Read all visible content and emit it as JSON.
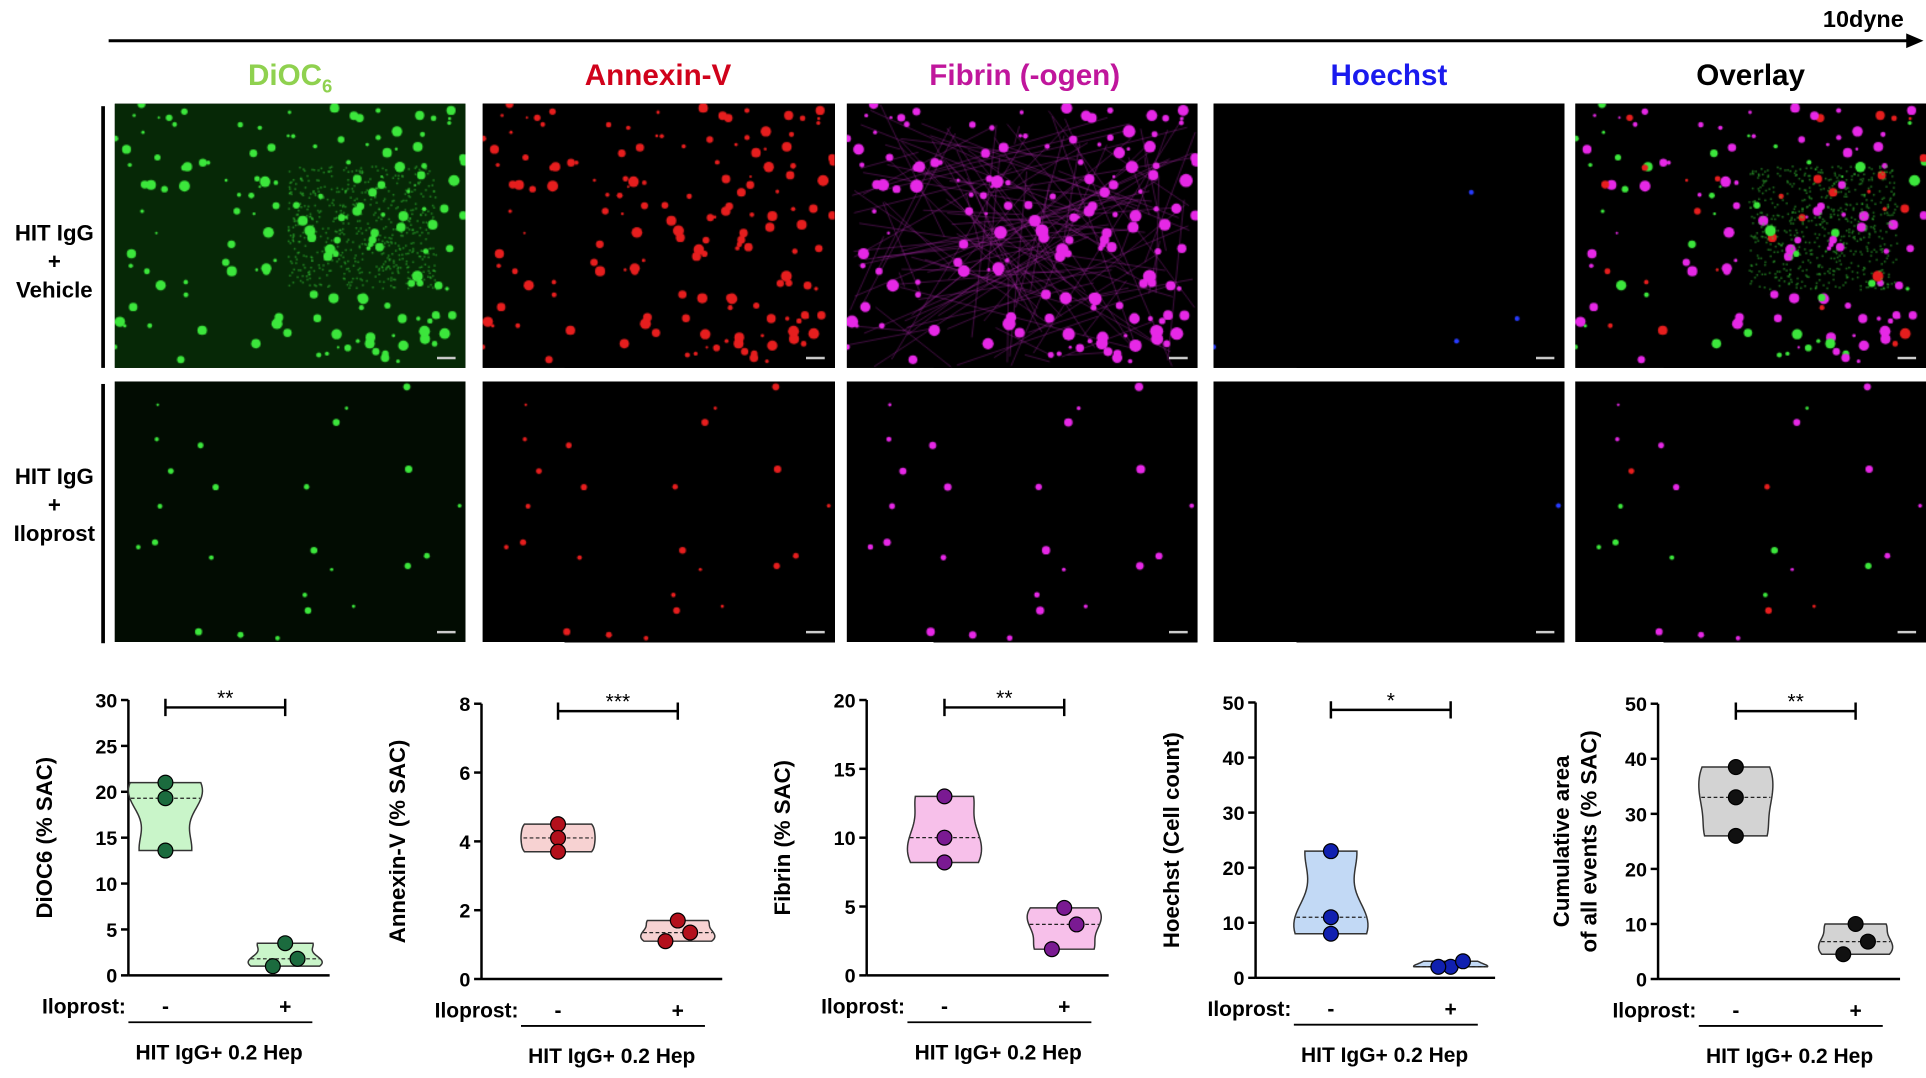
{
  "flow": {
    "label": "10dyne"
  },
  "columns": [
    {
      "label": "DiOC",
      "sub": "6",
      "color": "#8fd14f"
    },
    {
      "label": "Annexin-V",
      "sub": "",
      "color": "#d0021b"
    },
    {
      "label": "Fibrin (-ogen)",
      "sub": "",
      "color": "#c0169c"
    },
    {
      "label": "Hoechst",
      "sub": "",
      "color": "#1a1aee"
    },
    {
      "label": "Overlay",
      "sub": "",
      "color": "#000000"
    }
  ],
  "rows": [
    {
      "line1": "HIT IgG",
      "line2": "+",
      "line3": "Vehicle"
    },
    {
      "line1": "HIT IgG",
      "line2": "+",
      "line3": "Iloprost"
    }
  ],
  "chart_data": [
    {
      "type": "violin",
      "ylabel": "DiOC6 (% SAC)",
      "ylim": [
        0,
        30
      ],
      "yticks": [
        0,
        5,
        10,
        15,
        20,
        25,
        30
      ],
      "categories": [
        "-",
        "+"
      ],
      "group_label": "Iloprost:",
      "xlabel": "HIT IgG+ 0.2 Hep",
      "values": [
        [
          21.0,
          19.3,
          13.6
        ],
        [
          3.5,
          1.8,
          1.0
        ]
      ],
      "significance": "**",
      "fill": "#c9f5c9",
      "point": "#1b6b3e"
    },
    {
      "type": "violin",
      "ylabel": "Annexin-V (% SAC)",
      "ylim": [
        0,
        8
      ],
      "yticks": [
        0,
        2,
        4,
        6,
        8
      ],
      "categories": [
        "-",
        "+"
      ],
      "group_label": "Iloprost:",
      "xlabel": "HIT IgG+ 0.2 Hep",
      "values": [
        [
          4.5,
          4.1,
          3.7
        ],
        [
          1.7,
          1.35,
          1.1
        ]
      ],
      "significance": "***",
      "fill": "#f7d2d2",
      "point": "#b3101c"
    },
    {
      "type": "violin",
      "ylabel": "Fibrin (% SAC)",
      "ylim": [
        0,
        20
      ],
      "yticks": [
        0,
        5,
        10,
        15,
        20
      ],
      "categories": [
        "-",
        "+"
      ],
      "group_label": "Iloprost:",
      "xlabel": "HIT IgG+ 0.2 Hep",
      "values": [
        [
          13.0,
          10.0,
          8.2
        ],
        [
          4.9,
          3.7,
          1.9
        ]
      ],
      "significance": "**",
      "fill": "#f7c0ea",
      "point": "#7a1a92"
    },
    {
      "type": "violin",
      "ylabel": "Hoechst (Cell count)",
      "ylim": [
        0,
        50
      ],
      "yticks": [
        0,
        10,
        20,
        30,
        40,
        50
      ],
      "categories": [
        "-",
        "+"
      ],
      "group_label": "Iloprost:",
      "xlabel": "HIT IgG+ 0.2 Hep",
      "values": [
        [
          23.0,
          11.0,
          8.0
        ],
        [
          2.0,
          3.0,
          2.0
        ]
      ],
      "significance": "*",
      "fill": "#c2d9f5",
      "point": "#1020b0"
    },
    {
      "type": "violin",
      "ylabel": "Cumulative area\nof all events (% SAC)",
      "ylim": [
        0,
        50
      ],
      "yticks": [
        0,
        10,
        20,
        30,
        40,
        50
      ],
      "categories": [
        "-",
        "+"
      ],
      "group_label": "Iloprost:",
      "xlabel": "HIT IgG+ 0.2 Hep",
      "values": [
        [
          38.5,
          33.0,
          26.0
        ],
        [
          10.0,
          6.8,
          4.5
        ]
      ],
      "significance": "**",
      "fill": "#d3d3d3",
      "point": "#111111"
    }
  ]
}
